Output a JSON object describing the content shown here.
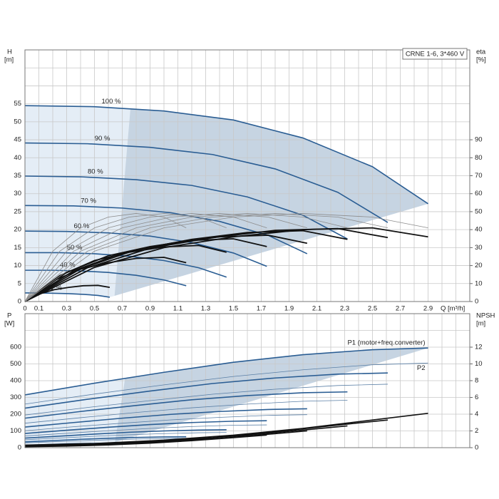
{
  "chart_data": [
    {
      "type": "line",
      "title": "CRNE 1-6, 3*460 V",
      "ylabel": "H",
      "yunit": "[m]",
      "y2label": "eta",
      "y2unit": "[%]",
      "xlabel": "Q [m³/h]",
      "xlim": [
        0,
        3.2
      ],
      "xticks": [
        0,
        0.1,
        0.3,
        0.5,
        0.7,
        0.9,
        1.1,
        1.3,
        1.5,
        1.7,
        1.9,
        2.1,
        2.3,
        2.5,
        2.7,
        2.9
      ],
      "xgrid": [
        0.2,
        0.4,
        0.6,
        0.8,
        1.0,
        1.2,
        1.4,
        1.6,
        1.8,
        2.0,
        2.2,
        2.4,
        2.6,
        2.8,
        3.0,
        3.1
      ],
      "show_xtick_labels": true,
      "ylim": [
        0,
        70
      ],
      "yticks": [
        0,
        5,
        10,
        15,
        20,
        25,
        30,
        35,
        40,
        45,
        50,
        55
      ],
      "ygrid": [
        60,
        65
      ],
      "y2lim": [
        0,
        140
      ],
      "y2ticks": [
        0,
        10,
        20,
        30,
        40,
        50,
        60,
        70,
        80,
        90
      ],
      "grid": true,
      "series_label_position": "start",
      "range_fill": "#c6d4e2",
      "range_fill_light": "#e4edf6",
      "series": [
        {
          "name": "100 %",
          "color": "#2a5d93",
          "line_width": 1.6,
          "x": [
            0,
            0.5,
            1,
            1.5,
            2,
            2.5,
            2.9
          ],
          "values": [
            54.5,
            54.2,
            53,
            50.5,
            45.5,
            37.5,
            27.2
          ]
        },
        {
          "name": "90 %",
          "color": "#2a5d93",
          "line_width": 1.6,
          "x": [
            0,
            0.45,
            0.9,
            1.35,
            1.8,
            2.25,
            2.61
          ],
          "values": [
            44.1,
            43.9,
            42.9,
            40.9,
            36.9,
            30.4,
            22.0
          ]
        },
        {
          "name": "80 %",
          "color": "#2a5d93",
          "line_width": 1.6,
          "x": [
            0,
            0.4,
            0.8,
            1.2,
            1.6,
            2.0,
            2.32
          ],
          "values": [
            34.9,
            34.7,
            33.9,
            32.3,
            29.1,
            24.0,
            17.4
          ]
        },
        {
          "name": "70 %",
          "color": "#2a5d93",
          "line_width": 1.6,
          "x": [
            0,
            0.35,
            0.7,
            1.05,
            1.4,
            1.75,
            2.03
          ],
          "values": [
            26.7,
            26.6,
            26.0,
            24.7,
            22.3,
            18.4,
            13.3
          ]
        },
        {
          "name": "60 %",
          "color": "#2a5d93",
          "line_width": 1.6,
          "x": [
            0,
            0.3,
            0.6,
            0.9,
            1.2,
            1.5,
            1.74
          ],
          "values": [
            19.6,
            19.5,
            19.1,
            18.2,
            16.4,
            13.5,
            9.8
          ]
        },
        {
          "name": "50 %",
          "color": "#2a5d93",
          "line_width": 1.6,
          "x": [
            0,
            0.25,
            0.5,
            0.75,
            1.0,
            1.25,
            1.45
          ],
          "values": [
            13.6,
            13.6,
            13.3,
            12.6,
            11.4,
            9.4,
            6.8
          ]
        },
        {
          "name": "40 %",
          "color": "#2a5d93",
          "line_width": 1.6,
          "x": [
            0,
            0.2,
            0.4,
            0.6,
            0.8,
            1.0,
            1.16
          ],
          "values": [
            8.7,
            8.7,
            8.5,
            8.1,
            7.3,
            6.0,
            4.4
          ]
        },
        {
          "name": "21 %",
          "color": "#2a5d93",
          "line_width": 1.6,
          "x": [
            0,
            0.105,
            0.21,
            0.315,
            0.42,
            0.525,
            0.61
          ],
          "values": [
            2.4,
            2.4,
            2.3,
            2.2,
            2.0,
            1.7,
            1.2
          ]
        },
        {
          "axis": "y2",
          "color": "#111111",
          "line_width": 1.8,
          "x": [
            0,
            0.5,
            1,
            1.5,
            2,
            2.5,
            2.9
          ],
          "values": [
            0,
            19,
            30,
            36,
            40,
            41,
            36
          ]
        },
        {
          "axis": "y2",
          "color": "#111111",
          "line_width": 1.8,
          "x": [
            0,
            0.45,
            0.9,
            1.35,
            1.8,
            2.25,
            2.61
          ],
          "values": [
            0,
            18.8,
            29.7,
            35.6,
            39.6,
            40.6,
            35.6
          ]
        },
        {
          "axis": "y2",
          "color": "#111111",
          "line_width": 1.8,
          "x": [
            0,
            0.4,
            0.8,
            1.2,
            1.6,
            2.0,
            2.32
          ],
          "values": [
            0,
            18.2,
            28.8,
            34.6,
            38.4,
            39.4,
            34.6
          ]
        },
        {
          "axis": "y2",
          "color": "#111111",
          "line_width": 1.8,
          "x": [
            0,
            0.35,
            0.7,
            1.05,
            1.4,
            1.75,
            2.03
          ],
          "values": [
            0,
            17.1,
            27,
            32.4,
            36,
            36.9,
            32.4
          ]
        },
        {
          "axis": "y2",
          "color": "#111111",
          "line_width": 1.8,
          "x": [
            0,
            0.3,
            0.6,
            0.9,
            1.2,
            1.5,
            1.74
          ],
          "values": [
            0,
            16.2,
            25.5,
            30.6,
            34,
            34.9,
            30.6
          ]
        },
        {
          "axis": "y2",
          "color": "#111111",
          "line_width": 1.8,
          "x": [
            0,
            0.25,
            0.5,
            0.75,
            1.0,
            1.25,
            1.45
          ],
          "values": [
            0,
            14.4,
            22.8,
            27.4,
            30.4,
            31.2,
            27.4
          ]
        },
        {
          "axis": "y2",
          "color": "#111111",
          "line_width": 1.8,
          "x": [
            0,
            0.2,
            0.4,
            0.6,
            0.8,
            1.0,
            1.16
          ],
          "values": [
            0,
            11.4,
            18,
            21.6,
            24,
            24.6,
            21.6
          ]
        },
        {
          "axis": "y2",
          "color": "#111111",
          "line_width": 1.8,
          "x": [
            0,
            0.105,
            0.21,
            0.315,
            0.42,
            0.525,
            0.61
          ],
          "values": [
            0,
            4.2,
            6.6,
            7.9,
            8.8,
            9,
            7.9
          ]
        },
        {
          "axis": "y2",
          "color": "#8c8c8c",
          "line_width": 0.8,
          "x": [
            0,
            0.5,
            1,
            1.5,
            2,
            2.5,
            2.9
          ],
          "values": [
            0,
            28,
            41,
            47,
            49,
            47,
            41
          ]
        },
        {
          "axis": "y2",
          "color": "#8c8c8c",
          "line_width": 0.8,
          "x": [
            0,
            0.45,
            0.9,
            1.35,
            1.8,
            2.25,
            2.61
          ],
          "values": [
            0,
            28,
            41,
            47,
            49,
            47,
            41
          ]
        },
        {
          "axis": "y2",
          "color": "#8c8c8c",
          "line_width": 0.8,
          "x": [
            0,
            0.4,
            0.8,
            1.2,
            1.6,
            2.0,
            2.32
          ],
          "values": [
            0,
            28,
            41,
            47,
            49,
            47,
            41
          ]
        },
        {
          "axis": "y2",
          "color": "#8c8c8c",
          "line_width": 0.8,
          "x": [
            0,
            0.35,
            0.7,
            1.05,
            1.4,
            1.75,
            2.03
          ],
          "values": [
            0,
            28,
            41,
            47,
            49,
            47,
            41
          ]
        },
        {
          "axis": "y2",
          "color": "#8c8c8c",
          "line_width": 0.8,
          "x": [
            0,
            0.3,
            0.6,
            0.9,
            1.2,
            1.5,
            1.74
          ],
          "values": [
            0,
            28,
            41,
            47,
            49,
            47,
            41
          ]
        },
        {
          "axis": "y2",
          "color": "#8c8c8c",
          "line_width": 0.8,
          "x": [
            0,
            0.25,
            0.5,
            0.75,
            1.0,
            1.25,
            1.45
          ],
          "values": [
            0,
            28,
            41,
            47,
            49,
            47,
            41
          ]
        },
        {
          "axis": "y2",
          "color": "#8c8c8c",
          "line_width": 0.8,
          "x": [
            0,
            0.2,
            0.4,
            0.6,
            0.8,
            1.0,
            1.16
          ],
          "values": [
            0,
            28,
            41,
            47,
            49,
            47,
            41
          ]
        }
      ]
    },
    {
      "type": "line",
      "ylabel": "P",
      "yunit": "[W]",
      "y2label": "NPSH",
      "y2unit": "[m]",
      "xlim": [
        0,
        3.2
      ],
      "xticks": [
        0,
        0.1,
        0.3,
        0.5,
        0.7,
        0.9,
        1.1,
        1.3,
        1.5,
        1.7,
        1.9,
        2.1,
        2.3,
        2.5,
        2.7,
        2.9
      ],
      "xgrid": [
        0.2,
        0.4,
        0.6,
        0.8,
        1.0,
        1.2,
        1.4,
        1.6,
        1.8,
        2.0,
        2.2,
        2.4,
        2.6,
        2.8,
        3.0,
        3.1
      ],
      "show_xtick_labels": false,
      "ylim": [
        0,
        800
      ],
      "yticks": [
        0,
        100,
        200,
        300,
        400,
        500,
        600
      ],
      "ygrid": [
        700
      ],
      "y2lim": [
        0,
        16
      ],
      "y2ticks": [
        0,
        2,
        4,
        6,
        8,
        10,
        12
      ],
      "grid": true,
      "series_label_position": "end",
      "range_fill": "#c6d4e2",
      "range_fill_light": "#e4edf6",
      "series": [
        {
          "name": "P1 (motor+freq.converter)",
          "color": "#2a5d93",
          "line_width": 1.6,
          "x": [
            0,
            0.5,
            1,
            1.5,
            2,
            2.5,
            2.9
          ],
          "values": [
            315,
            385,
            450,
            510,
            555,
            585,
            595
          ]
        },
        {
          "color": "#2a5d93",
          "line_width": 1.6,
          "x": [
            0,
            0.45,
            0.9,
            1.35,
            1.8,
            2.25,
            2.61
          ],
          "values": [
            236,
            289,
            338,
            383,
            416,
            439,
            446
          ]
        },
        {
          "color": "#2a5d93",
          "line_width": 1.6,
          "x": [
            0,
            0.4,
            0.8,
            1.2,
            1.6,
            2.0,
            2.32
          ],
          "values": [
            176,
            216,
            252,
            286,
            311,
            328,
            333
          ]
        },
        {
          "color": "#2a5d93",
          "line_width": 1.6,
          "x": [
            0,
            0.35,
            0.7,
            1.05,
            1.4,
            1.75,
            2.03
          ],
          "values": [
            123,
            150,
            176,
            199,
            216,
            228,
            232
          ]
        },
        {
          "color": "#2a5d93",
          "line_width": 1.6,
          "x": [
            0,
            0.3,
            0.6,
            0.9,
            1.2,
            1.5,
            1.74
          ],
          "values": [
            85,
            104,
            122,
            138,
            150,
            158,
            161
          ]
        },
        {
          "color": "#2a5d93",
          "line_width": 1.6,
          "x": [
            0,
            0.25,
            0.5,
            0.75,
            1.0,
            1.25,
            1.45
          ],
          "values": [
            57,
            69,
            81,
            92,
            100,
            105,
            107
          ]
        },
        {
          "color": "#2a5d93",
          "line_width": 1.6,
          "x": [
            0,
            0.2,
            0.4,
            0.6,
            0.8,
            1.0,
            1.16
          ],
          "values": [
            35,
            42,
            50,
            56,
            61,
            64,
            65
          ]
        },
        {
          "color": "#2a5d93",
          "line_width": 1.6,
          "x": [
            0,
            0.105,
            0.21,
            0.315,
            0.42,
            0.525,
            0.61
          ],
          "values": [
            14,
            17,
            20,
            23,
            25,
            26,
            27
          ]
        },
        {
          "name": "P2",
          "color": "#5a7fa6",
          "line_width": 0.8,
          "x": [
            0,
            0.5,
            1,
            1.5,
            2,
            2.5,
            2.9
          ],
          "values": [
            260,
            320,
            375,
            425,
            465,
            495,
            505
          ]
        },
        {
          "color": "#5a7fa6",
          "line_width": 0.8,
          "x": [
            0,
            0.45,
            0.9,
            1.35,
            1.8,
            2.25,
            2.61
          ],
          "values": [
            195,
            240,
            281,
            319,
            349,
            371,
            379
          ]
        },
        {
          "color": "#5a7fa6",
          "line_width": 0.8,
          "x": [
            0,
            0.4,
            0.8,
            1.2,
            1.6,
            2.0,
            2.32
          ],
          "values": [
            146,
            179,
            210,
            238,
            260,
            277,
            283
          ]
        },
        {
          "color": "#5a7fa6",
          "line_width": 0.8,
          "x": [
            0,
            0.35,
            0.7,
            1.05,
            1.4,
            1.75,
            2.03
          ],
          "values": [
            101,
            125,
            146,
            166,
            181,
            193,
            197
          ]
        },
        {
          "color": "#5a7fa6",
          "line_width": 0.8,
          "x": [
            0,
            0.3,
            0.6,
            0.9,
            1.2,
            1.5,
            1.74
          ],
          "values": [
            70,
            86,
            101,
            115,
            126,
            134,
            136
          ]
        },
        {
          "color": "#5a7fa6",
          "line_width": 0.8,
          "x": [
            0,
            0.25,
            0.5,
            0.75,
            1.0,
            1.25,
            1.45
          ],
          "values": [
            47,
            58,
            68,
            77,
            84,
            89,
            91
          ]
        },
        {
          "color": "#5a7fa6",
          "line_width": 0.8,
          "x": [
            0,
            0.2,
            0.4,
            0.6,
            0.8,
            1.0,
            1.16
          ],
          "values": [
            29,
            35,
            41,
            47,
            51,
            54,
            56
          ]
        },
        {
          "color": "#5a7fa6",
          "line_width": 0.8,
          "x": [
            0,
            0.105,
            0.21,
            0.315,
            0.42,
            0.525,
            0.61
          ],
          "values": [
            12,
            14,
            17,
            19,
            21,
            22,
            23
          ]
        },
        {
          "axis": "y2",
          "color": "#111111",
          "line_width": 1.6,
          "x": [
            0,
            0.5,
            1,
            1.5,
            2,
            2.5,
            2.9
          ],
          "values": [
            0.3,
            0.5,
            0.9,
            1.5,
            2.3,
            3.3,
            4.1
          ]
        },
        {
          "axis": "y2",
          "color": "#111111",
          "line_width": 1.6,
          "x": [
            0,
            0.45,
            0.9,
            1.35,
            1.8,
            2.25,
            2.61
          ],
          "values": [
            0.24,
            0.41,
            0.73,
            1.2,
            1.9,
            2.7,
            3.3
          ]
        },
        {
          "axis": "y2",
          "color": "#111111",
          "line_width": 1.6,
          "x": [
            0,
            0.4,
            0.8,
            1.2,
            1.6,
            2.0,
            2.32
          ],
          "values": [
            0.19,
            0.32,
            0.58,
            0.96,
            1.5,
            2.1,
            2.6
          ]
        },
        {
          "axis": "y2",
          "color": "#111111",
          "line_width": 1.6,
          "x": [
            0,
            0.35,
            0.7,
            1.05,
            1.4,
            1.75,
            2.03
          ],
          "values": [
            0.15,
            0.25,
            0.44,
            0.74,
            1.1,
            1.6,
            2.0
          ]
        },
        {
          "axis": "y2",
          "color": "#111111",
          "line_width": 1.6,
          "x": [
            0,
            0.3,
            0.6,
            0.9,
            1.2,
            1.5,
            1.74
          ],
          "values": [
            0.11,
            0.18,
            0.32,
            0.54,
            0.83,
            1.2,
            1.5
          ]
        }
      ]
    }
  ]
}
